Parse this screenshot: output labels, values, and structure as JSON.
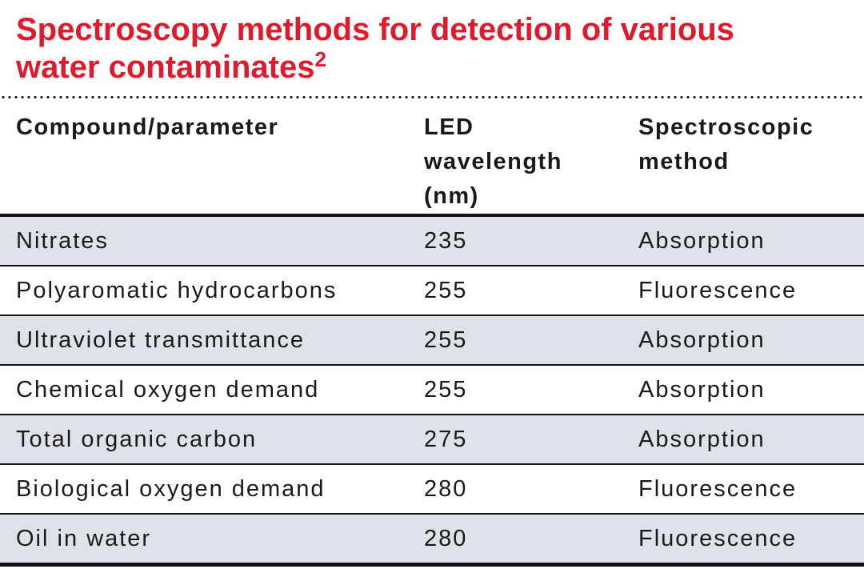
{
  "title": {
    "line1": "Spectroscopy methods for detection of various",
    "line2": "water contaminates",
    "superscript": "2"
  },
  "colors": {
    "title_red": "#e01a2b",
    "row_shade": "#dfe2e9",
    "rule_black": "#111111"
  },
  "table": {
    "header_cells": [
      "Compound/parameter",
      "LED\nwavelength\n(nm)",
      "Spectroscopic\nmethod"
    ],
    "rows": [
      {
        "compound": "Nitrates",
        "wavelength": "235",
        "method": "Absorption"
      },
      {
        "compound": "Polyaromatic hydrocarbons",
        "wavelength": "255",
        "method": "Fluorescence"
      },
      {
        "compound": "Ultraviolet transmittance",
        "wavelength": "255",
        "method": "Absorption"
      },
      {
        "compound": "Chemical oxygen demand",
        "wavelength": "255",
        "method": "Absorption"
      },
      {
        "compound": "Total organic carbon",
        "wavelength": "275",
        "method": "Absorption"
      },
      {
        "compound": "Biological oxygen demand",
        "wavelength": "280",
        "method": "Fluorescence"
      },
      {
        "compound": "Oil in water",
        "wavelength": "280",
        "method": "Fluorescence"
      }
    ]
  },
  "chart_data": {
    "type": "table",
    "title": "Spectroscopy methods for detection of various water contaminates",
    "title_reference_superscript": "2",
    "columns": [
      "Compound/parameter",
      "LED wavelength (nm)",
      "Spectroscopic method"
    ],
    "rows": [
      [
        "Nitrates",
        235,
        "Absorption"
      ],
      [
        "Polyaromatic hydrocarbons",
        255,
        "Fluorescence"
      ],
      [
        "Ultraviolet transmittance",
        255,
        "Absorption"
      ],
      [
        "Chemical oxygen demand",
        255,
        "Absorption"
      ],
      [
        "Total organic carbon",
        275,
        "Absorption"
      ],
      [
        "Biological oxygen demand",
        280,
        "Fluorescence"
      ],
      [
        "Oil in water",
        280,
        "Fluorescence"
      ]
    ],
    "layout_hints": {
      "alternating_row_shading": "rows 1,3,5,7 shaded light blue-gray",
      "header_rule": "thin black under header",
      "bottom_rule": "thick black",
      "top_rule": "dotted black line under title"
    }
  }
}
